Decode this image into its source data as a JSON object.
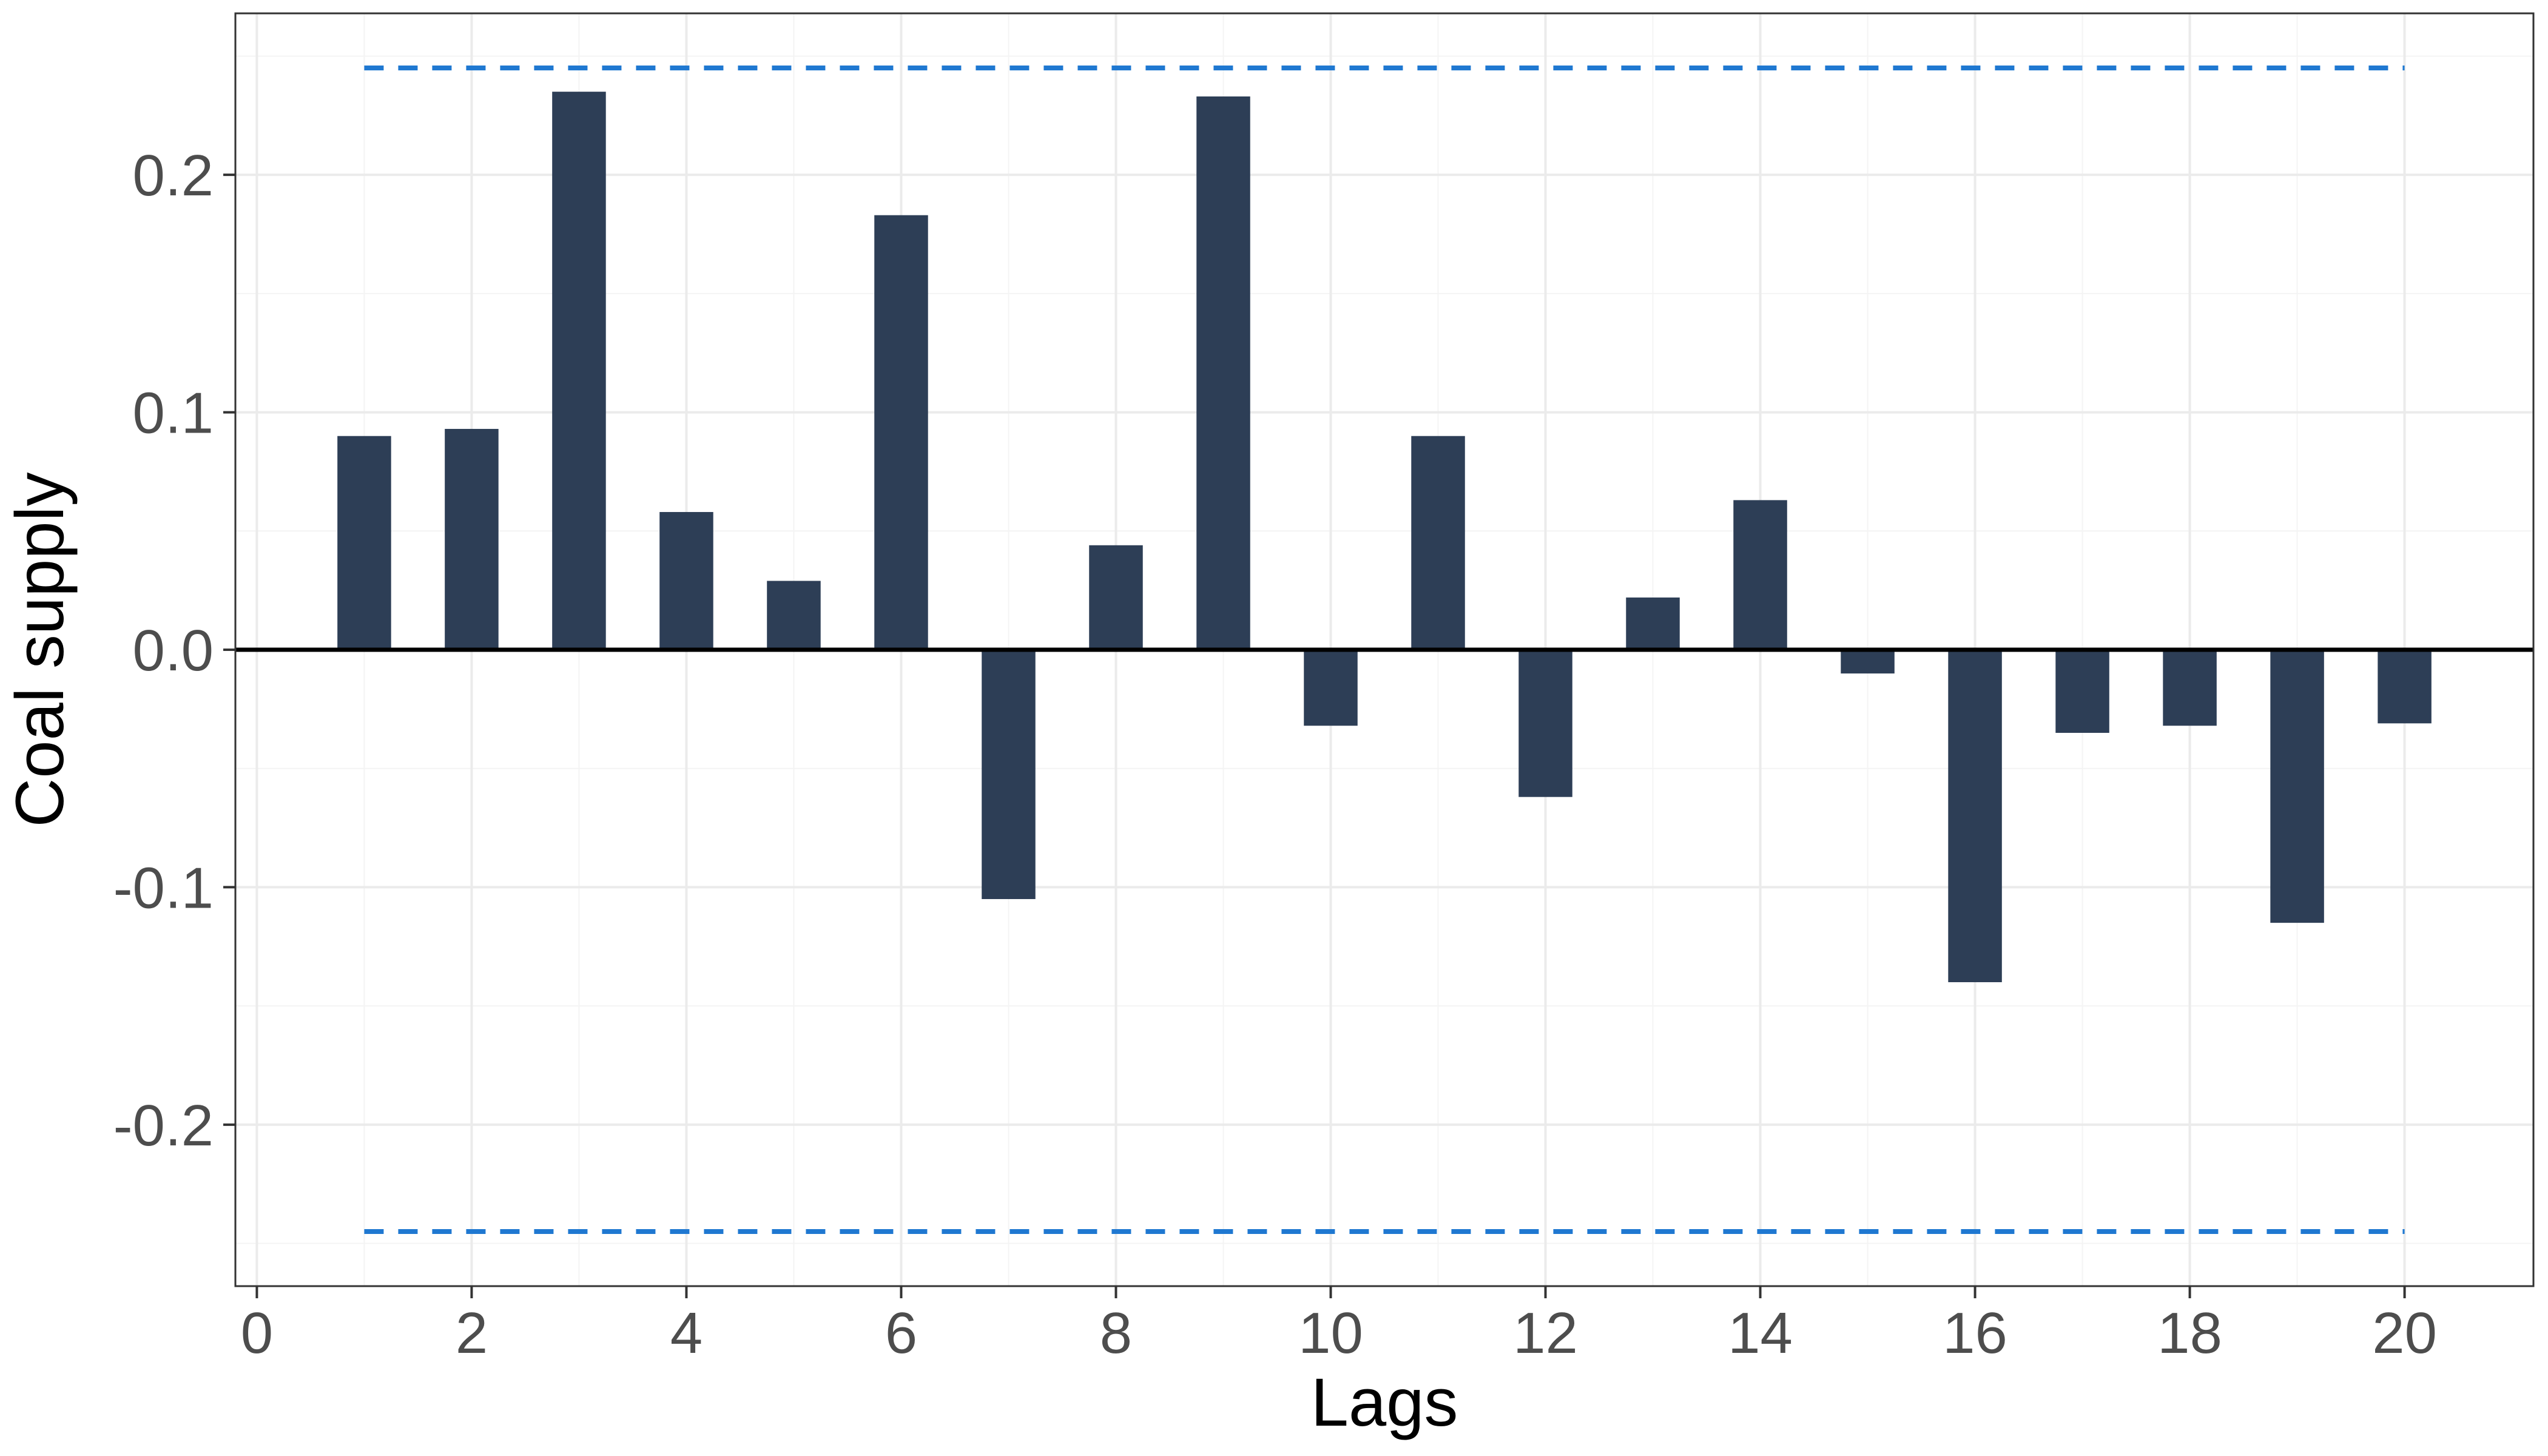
{
  "chart_data": {
    "type": "bar",
    "title": "",
    "xlabel": "Lags",
    "ylabel": "Coal supply",
    "x": [
      1,
      2,
      3,
      4,
      5,
      6,
      7,
      8,
      9,
      10,
      11,
      12,
      13,
      14,
      15,
      16,
      17,
      18,
      19,
      20
    ],
    "values": [
      0.09,
      0.093,
      0.235,
      0.058,
      0.029,
      0.183,
      -0.105,
      0.044,
      0.233,
      -0.032,
      0.09,
      -0.062,
      0.022,
      0.063,
      -0.01,
      -0.14,
      -0.035,
      -0.032,
      -0.115,
      -0.031
    ],
    "xlim": [
      -0.2,
      21.2
    ],
    "ylim": [
      -0.268,
      0.268
    ],
    "xticks": [
      0,
      2,
      4,
      6,
      8,
      10,
      12,
      14,
      16,
      18,
      20
    ],
    "xtick_labels": [
      "0",
      "2",
      "4",
      "6",
      "8",
      "10",
      "12",
      "14",
      "16",
      "18",
      "20"
    ],
    "yticks": [
      -0.2,
      -0.1,
      0.0,
      0.1,
      0.2
    ],
    "ytick_labels": [
      "-0.2",
      "-0.1",
      "0.0",
      "0.1",
      "0.2"
    ],
    "confidence_bounds": [
      0.245,
      -0.245
    ],
    "grid": true,
    "colors": {
      "bar": "#2d3e56",
      "bound": "#1f78d1",
      "zero_line": "#000000",
      "grid_major": "#ebebeb",
      "grid_minor": "#f4f4f4",
      "panel_border": "#333333"
    }
  }
}
